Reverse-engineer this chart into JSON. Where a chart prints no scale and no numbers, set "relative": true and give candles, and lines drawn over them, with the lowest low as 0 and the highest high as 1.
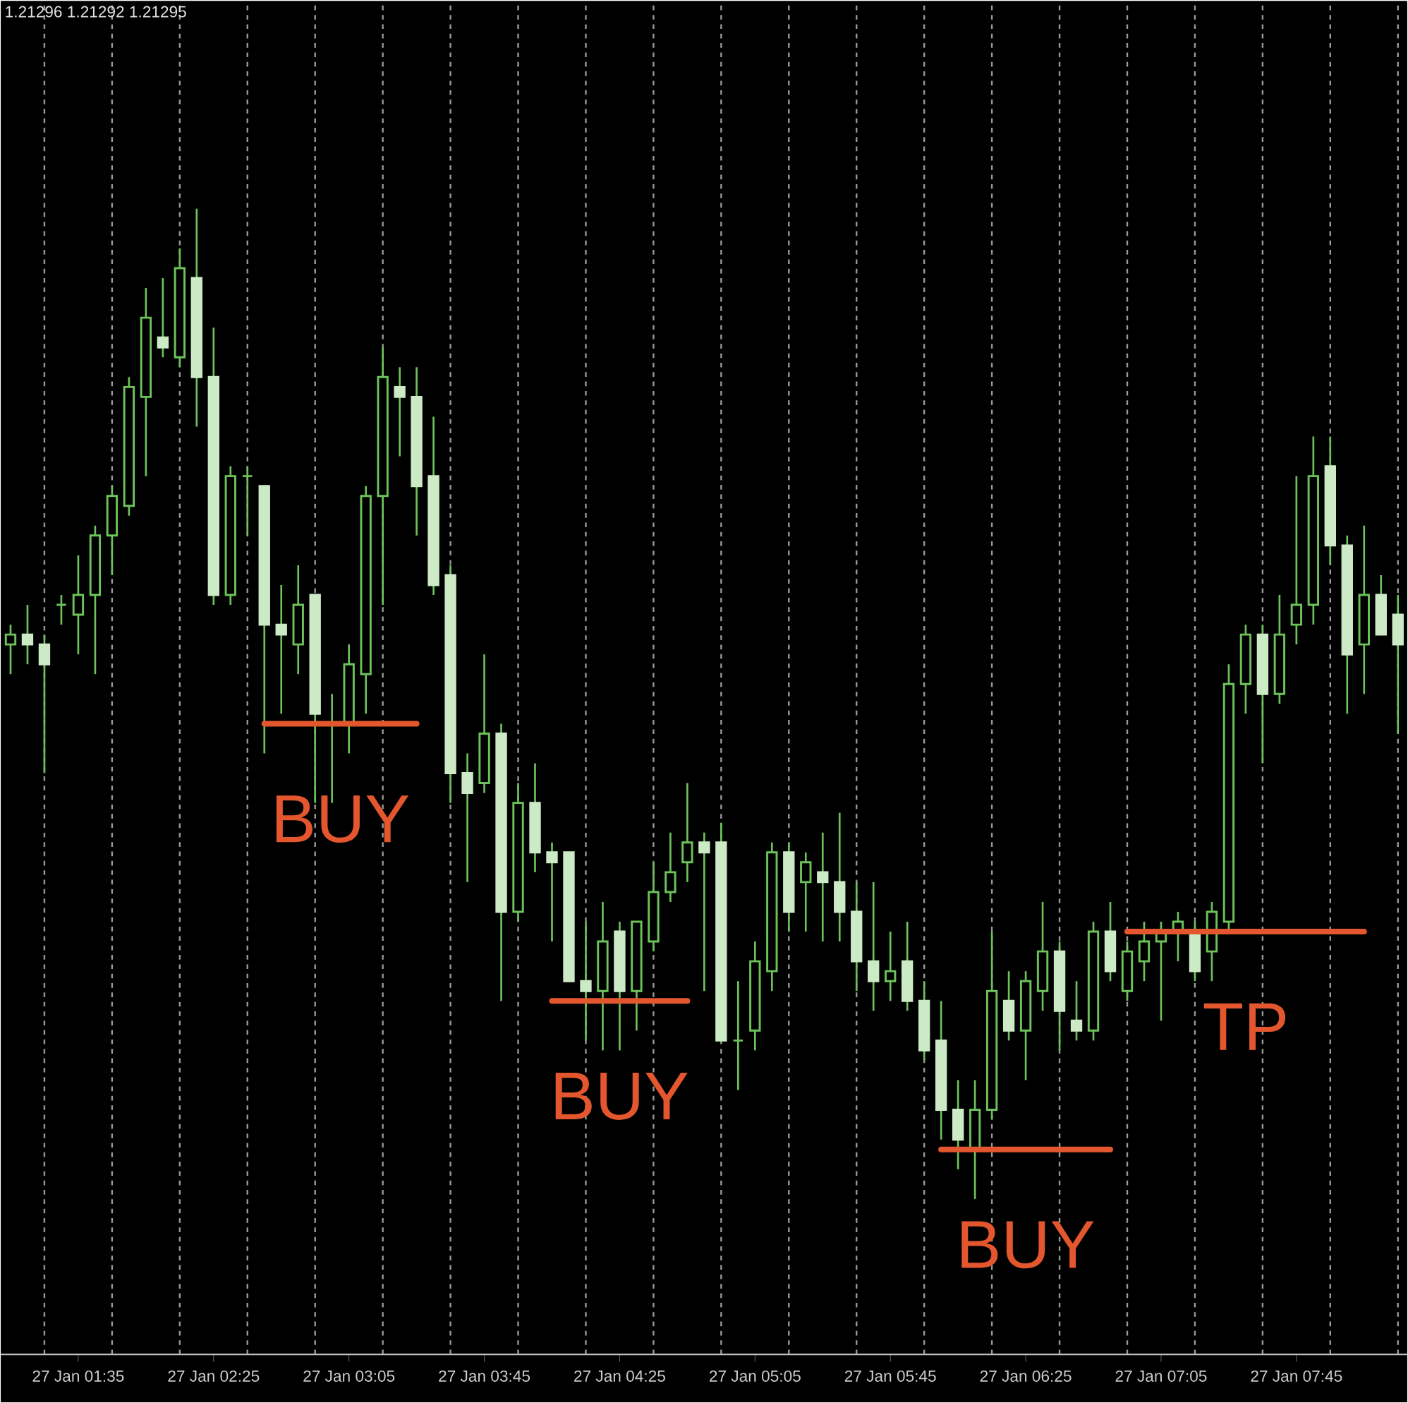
{
  "chart_data": {
    "type": "candlestick",
    "relative": true,
    "grid": true,
    "tick_labels": "x",
    "color": "#6cc35a",
    "colors": [
      "#6cc35a",
      "#cceac5",
      "#cceac5",
      "#6cc35a",
      "#6cc35a",
      "#6cc35a",
      "#6cc35a",
      "#6cc35a",
      "#6cc35a",
      "#cceac5",
      "#6cc35a",
      "#cceac5",
      "#cceac5",
      "#6cc35a",
      "#6cc35a",
      "#cceac5",
      "#cceac5",
      "#6cc35a",
      "#cceac5",
      "#6cc35a",
      "#6cc35a",
      "#6cc35a",
      "#6cc35a",
      "#cceac5",
      "#cceac5",
      "#cceac5",
      "#cceac5",
      "#cceac5",
      "#6cc35a",
      "#cceac5",
      "#6cc35a",
      "#cceac5",
      "#cceac5",
      "#cceac5",
      "#cceac5",
      "#6cc35a",
      "#cceac5",
      "#6cc35a",
      "#6cc35a",
      "#6cc35a",
      "#6cc35a",
      "#cceac5",
      "#cceac5",
      "#6cc35a",
      "#6cc35a",
      "#6cc35a",
      "#cceac5",
      "#6cc35a",
      "#cceac5",
      "#cceac5",
      "#cceac5",
      "#cceac5",
      "#6cc35a",
      "#cceac5",
      "#cceac5",
      "#cceac5",
      "#cceac5",
      "#6cc35a",
      "#6cc35a",
      "#cceac5",
      "#6cc35a",
      "#6cc35a",
      "#cceac5",
      "#cceac5",
      "#6cc35a",
      "#cceac5",
      "#6cc35a",
      "#6cc35a",
      "#6cc35a",
      "#6cc35a",
      "#cceac5",
      "#6cc35a",
      "#6cc35a",
      "#6cc35a",
      "#cceac5",
      "#6cc35a",
      "#6cc35a",
      "#6cc35a",
      "#cceac5",
      "#cceac5",
      "#6cc35a",
      "#cceac5",
      "#cceac5"
    ],
    "categories": [
      null,
      null,
      null,
      null,
      "27 Jan 01:35",
      null,
      null,
      null,
      null,
      null,
      null,
      null,
      "27 Jan 02:25",
      null,
      null,
      null,
      null,
      null,
      null,
      null,
      "27 Jan 03:05",
      null,
      null,
      null,
      null,
      null,
      null,
      null,
      "27 Jan 03:45",
      null,
      null,
      null,
      null,
      null,
      null,
      null,
      "27 Jan 04:25",
      null,
      null,
      null,
      null,
      null,
      null,
      null,
      "27 Jan 05:05",
      null,
      null,
      null,
      null,
      null,
      null,
      null,
      "27 Jan 05:45",
      null,
      null,
      null,
      null,
      null,
      null,
      null,
      "27 Jan 06:25",
      null,
      null,
      null,
      null,
      null,
      null,
      null,
      "27 Jan 07:05",
      null,
      null,
      null,
      null,
      null,
      null,
      null,
      "27 Jan 07:45",
      null,
      null,
      null,
      null,
      null,
      null
    ],
    "ohlc": [
      [
        0.56,
        0.58,
        0.53,
        0.57
      ],
      [
        0.57,
        0.6,
        0.54,
        0.56
      ],
      [
        0.56,
        0.57,
        0.43,
        0.54
      ],
      [
        0.6,
        0.61,
        0.58,
        0.6
      ],
      [
        0.59,
        0.65,
        0.55,
        0.61
      ],
      [
        0.61,
        0.68,
        0.53,
        0.67
      ],
      [
        0.67,
        0.72,
        0.63,
        0.71
      ],
      [
        0.7,
        0.83,
        0.69,
        0.82
      ],
      [
        0.81,
        0.92,
        0.73,
        0.89
      ],
      [
        0.87,
        0.93,
        0.85,
        0.86
      ],
      [
        0.85,
        0.96,
        0.84,
        0.94
      ],
      [
        0.93,
        1,
        0.78,
        0.83
      ],
      [
        0.83,
        0.88,
        0.6,
        0.61
      ],
      [
        0.61,
        0.74,
        0.6,
        0.73
      ],
      [
        0.73,
        0.74,
        0.67,
        0.73
      ],
      [
        0.72,
        0.72,
        0.45,
        0.58
      ],
      [
        0.58,
        0.62,
        0.49,
        0.57
      ],
      [
        0.56,
        0.64,
        0.53,
        0.6
      ],
      [
        0.61,
        0.61,
        0.4,
        0.49
      ],
      [
        0.48,
        0.51,
        0.4,
        0.48
      ],
      [
        0.48,
        0.56,
        0.45,
        0.54
      ],
      [
        0.53,
        0.72,
        0.49,
        0.71
      ],
      [
        0.71,
        0.86,
        0.6,
        0.83
      ],
      [
        0.82,
        0.84,
        0.75,
        0.81
      ],
      [
        0.81,
        0.84,
        0.67,
        0.72
      ],
      [
        0.73,
        0.79,
        0.61,
        0.62
      ],
      [
        0.63,
        0.64,
        0.4,
        0.43
      ],
      [
        0.43,
        0.45,
        0.32,
        0.41
      ],
      [
        0.42,
        0.55,
        0.41,
        0.47
      ],
      [
        0.47,
        0.48,
        0.2,
        0.29
      ],
      [
        0.29,
        0.42,
        0.28,
        0.4
      ],
      [
        0.4,
        0.44,
        0.33,
        0.35
      ],
      [
        0.35,
        0.36,
        0.26,
        0.34
      ],
      [
        0.35,
        0.35,
        0.22,
        0.22
      ],
      [
        0.22,
        0.28,
        0.16,
        0.21
      ],
      [
        0.21,
        0.3,
        0.15,
        0.26
      ],
      [
        0.27,
        0.28,
        0.15,
        0.21
      ],
      [
        0.21,
        0.28,
        0.17,
        0.28
      ],
      [
        0.26,
        0.34,
        0.25,
        0.31
      ],
      [
        0.31,
        0.37,
        0.3,
        0.33
      ],
      [
        0.34,
        0.42,
        0.32,
        0.36
      ],
      [
        0.36,
        0.37,
        0.21,
        0.35
      ],
      [
        0.36,
        0.38,
        0.16,
        0.16
      ],
      [
        0.16,
        0.22,
        0.11,
        0.16
      ],
      [
        0.17,
        0.26,
        0.15,
        0.24
      ],
      [
        0.23,
        0.36,
        0.21,
        0.35
      ],
      [
        0.35,
        0.36,
        0.27,
        0.29
      ],
      [
        0.32,
        0.35,
        0.27,
        0.34
      ],
      [
        0.33,
        0.37,
        0.26,
        0.32
      ],
      [
        0.32,
        0.39,
        0.26,
        0.29
      ],
      [
        0.29,
        0.32,
        0.21,
        0.24
      ],
      [
        0.24,
        0.32,
        0.19,
        0.22
      ],
      [
        0.22,
        0.27,
        0.2,
        0.23
      ],
      [
        0.24,
        0.28,
        0.19,
        0.2
      ],
      [
        0.2,
        0.22,
        0.14,
        0.15
      ],
      [
        0.16,
        0.2,
        0.06,
        0.09
      ],
      [
        0.09,
        0.12,
        0.03,
        0.06
      ],
      [
        0.05,
        0.12,
        0,
        0.09
      ],
      [
        0.09,
        0.27,
        0.08,
        0.21
      ],
      [
        0.2,
        0.23,
        0.16,
        0.17
      ],
      [
        0.17,
        0.23,
        0.12,
        0.22
      ],
      [
        0.21,
        0.3,
        0.19,
        0.25
      ],
      [
        0.25,
        0.26,
        0.15,
        0.19
      ],
      [
        0.18,
        0.22,
        0.16,
        0.17
      ],
      [
        0.17,
        0.28,
        0.16,
        0.27
      ],
      [
        0.27,
        0.3,
        0.22,
        0.23
      ],
      [
        0.21,
        0.26,
        0.2,
        0.25
      ],
      [
        0.24,
        0.28,
        0.22,
        0.26
      ],
      [
        0.26,
        0.28,
        0.18,
        0.27
      ],
      [
        0.27,
        0.29,
        0.24,
        0.28
      ],
      [
        0.27,
        0.28,
        0.22,
        0.23
      ],
      [
        0.25,
        0.3,
        0.22,
        0.29
      ],
      [
        0.28,
        0.54,
        0.27,
        0.52
      ],
      [
        0.52,
        0.58,
        0.49,
        0.57
      ],
      [
        0.57,
        0.58,
        0.44,
        0.51
      ],
      [
        0.51,
        0.61,
        0.5,
        0.57
      ],
      [
        0.58,
        0.73,
        0.56,
        0.6
      ],
      [
        0.6,
        0.77,
        0.58,
        0.73
      ],
      [
        0.74,
        0.77,
        0.64,
        0.66
      ],
      [
        0.66,
        0.67,
        0.49,
        0.55
      ],
      [
        0.56,
        0.68,
        0.51,
        0.61
      ],
      [
        0.61,
        0.63,
        0.57,
        0.57
      ],
      [
        0.59,
        0.61,
        0.47,
        0.56
      ]
    ],
    "series": [
      {
        "type": "line",
        "color": "#e4572e",
        "values": [
          null,
          null,
          null,
          null,
          null,
          null,
          null,
          null,
          null,
          null,
          null,
          null,
          null,
          null,
          null,
          0.48,
          0.48,
          0.48,
          0.48,
          0.48,
          0.48,
          0.48,
          0.48,
          0.48,
          0.48,
          null,
          null,
          null,
          null,
          null,
          null,
          null,
          null,
          null,
          null,
          null,
          null,
          null,
          null,
          null,
          null,
          null,
          null,
          null,
          null,
          null,
          null,
          null,
          null,
          null,
          null,
          null,
          null,
          null,
          null,
          null,
          null,
          null,
          null,
          null,
          null,
          null,
          null,
          null,
          null,
          null,
          null,
          null,
          null,
          null,
          null,
          null,
          null,
          null,
          null,
          null,
          null,
          null,
          null,
          null,
          null,
          null,
          null
        ]
      },
      {
        "type": "line",
        "color": "#e4572e",
        "values": [
          null,
          null,
          null,
          null,
          null,
          null,
          null,
          null,
          null,
          null,
          null,
          null,
          null,
          null,
          null,
          null,
          null,
          null,
          null,
          null,
          null,
          null,
          null,
          null,
          null,
          null,
          null,
          null,
          null,
          null,
          null,
          null,
          0.2,
          0.2,
          0.2,
          0.2,
          0.2,
          0.2,
          0.2,
          0.2,
          0.2,
          null,
          null,
          null,
          null,
          null,
          null,
          null,
          null,
          null,
          null,
          null,
          null,
          null,
          null,
          null,
          null,
          null,
          null,
          null,
          null,
          null,
          null,
          null,
          null,
          null,
          null,
          null,
          null,
          null,
          null,
          null,
          null,
          null,
          null,
          null,
          null,
          null,
          null,
          null,
          null,
          null,
          null
        ]
      },
      {
        "type": "line",
        "color": "#e4572e",
        "values": [
          null,
          null,
          null,
          null,
          null,
          null,
          null,
          null,
          null,
          null,
          null,
          null,
          null,
          null,
          null,
          null,
          null,
          null,
          null,
          null,
          null,
          null,
          null,
          null,
          null,
          null,
          null,
          null,
          null,
          null,
          null,
          null,
          null,
          null,
          null,
          null,
          null,
          null,
          null,
          null,
          null,
          null,
          null,
          null,
          null,
          null,
          null,
          null,
          null,
          null,
          null,
          null,
          null,
          null,
          null,
          0.05,
          0.05,
          0.05,
          0.05,
          0.05,
          0.05,
          0.05,
          0.05,
          0.05,
          0.05,
          0.05,
          null,
          null,
          null,
          null,
          null,
          null,
          null,
          null,
          null,
          null,
          null,
          null,
          null,
          null,
          null,
          null,
          null
        ]
      },
      {
        "type": "line",
        "color": "#e4572e",
        "values": [
          null,
          null,
          null,
          null,
          null,
          null,
          null,
          null,
          null,
          null,
          null,
          null,
          null,
          null,
          null,
          null,
          null,
          null,
          null,
          null,
          null,
          null,
          null,
          null,
          null,
          null,
          null,
          null,
          null,
          null,
          null,
          null,
          null,
          null,
          null,
          null,
          null,
          null,
          null,
          null,
          null,
          null,
          null,
          null,
          null,
          null,
          null,
          null,
          null,
          null,
          null,
          null,
          null,
          null,
          null,
          null,
          null,
          null,
          null,
          null,
          null,
          null,
          null,
          null,
          null,
          null,
          0.27,
          0.27,
          0.27,
          0.27,
          0.27,
          0.27,
          0.27,
          0.27,
          0.27,
          0.27,
          0.27,
          0.27,
          0.27,
          0.27,
          0.27,
          null,
          null
        ]
      }
    ],
    "annotations": [
      "1.21296 1.21292 1.21295",
      "BUY",
      "BUY",
      "BUY",
      "TP"
    ]
  }
}
